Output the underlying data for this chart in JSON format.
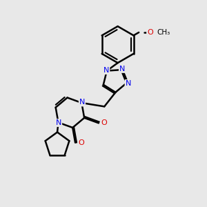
{
  "bg_color": "#e8e8e8",
  "bond_color": "#000000",
  "nitrogen_color": "#0000ee",
  "oxygen_color": "#dd0000",
  "line_width": 1.8,
  "dbo": 0.055,
  "fig_width": 3.0,
  "fig_height": 3.0,
  "dpi": 100,
  "xlim": [
    0,
    10
  ],
  "ylim": [
    0,
    10
  ]
}
